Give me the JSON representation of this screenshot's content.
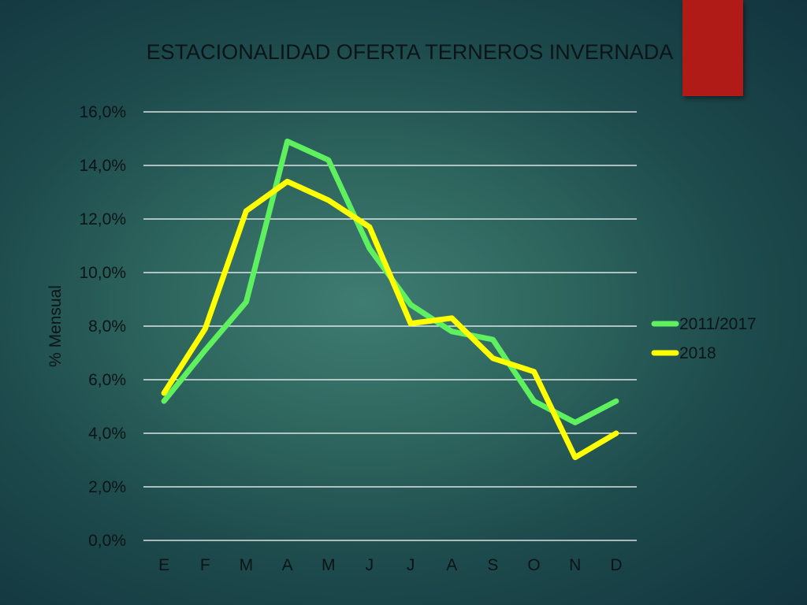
{
  "colors": {
    "accent_block": "#b01a17",
    "gridline": "#ffffff",
    "text": "#0b1416"
  },
  "chart_data": {
    "type": "line",
    "title": "ESTACIONALIDAD OFERTA TERNEROS INVERNADA",
    "xlabel": "",
    "ylabel": "% Mensual",
    "categories": [
      "E",
      "F",
      "M",
      "A",
      "M",
      "J",
      "J",
      "A",
      "S",
      "O",
      "N",
      "D"
    ],
    "ylim": [
      0,
      16
    ],
    "yticks": [
      0,
      2,
      4,
      6,
      8,
      10,
      12,
      14,
      16
    ],
    "ytick_labels": [
      "0,0%",
      "2,0%",
      "4,0%",
      "6,0%",
      "8,0%",
      "10,0%",
      "12,0%",
      "14,0%",
      "16,0%"
    ],
    "grid": true,
    "legend_position": "right",
    "series": [
      {
        "name": "2011/2017",
        "color": "#5ef05e",
        "values": [
          5.2,
          7.1,
          8.9,
          14.9,
          14.2,
          10.9,
          8.8,
          7.8,
          7.5,
          5.2,
          4.4,
          5.2
        ]
      },
      {
        "name": "2018",
        "color": "#ffff00",
        "values": [
          5.5,
          7.9,
          12.3,
          13.4,
          12.7,
          11.7,
          8.1,
          8.3,
          6.8,
          6.3,
          3.1,
          4.0
        ]
      }
    ]
  }
}
